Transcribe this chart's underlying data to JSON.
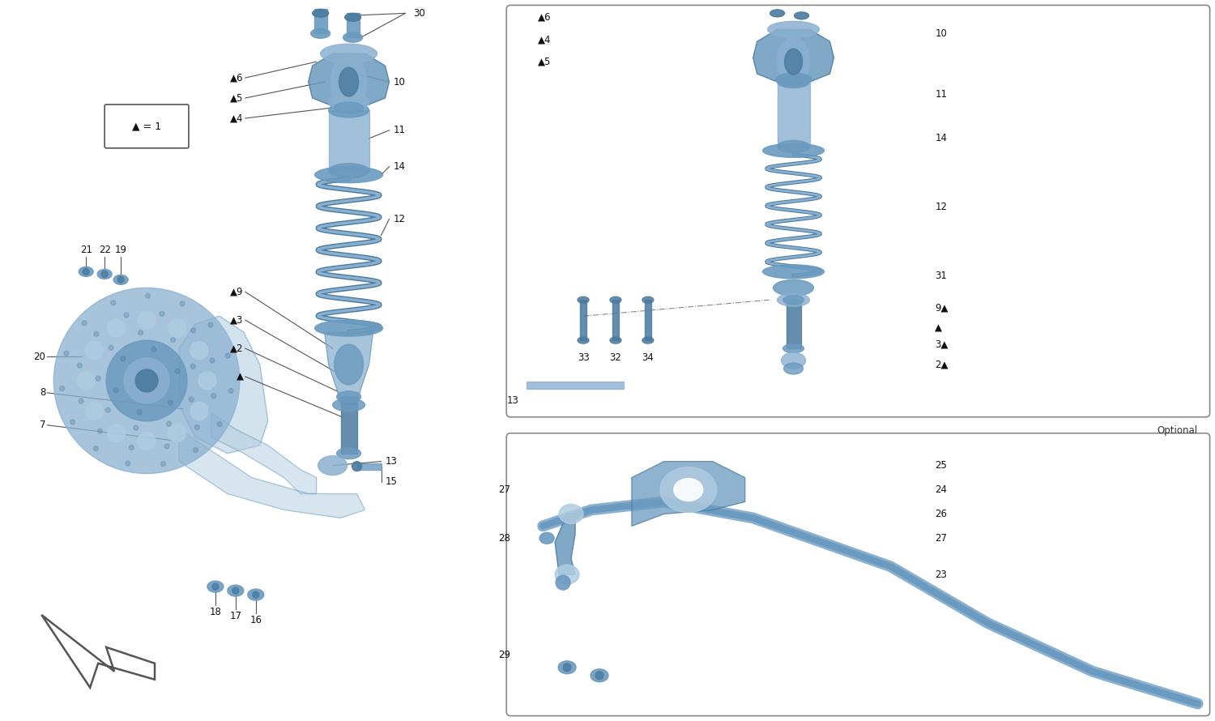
{
  "bg_color": "#ffffff",
  "blue": "#8ab0d0",
  "blue_light": "#b0cce0",
  "blue_mid": "#6a9abf",
  "blue_dark": "#4a7a9f",
  "blue_pale": "#ccdde8",
  "line_color": "#555555",
  "text_color": "#111111",
  "fig_width": 15.0,
  "fig_height": 8.9,
  "dpi": 100
}
